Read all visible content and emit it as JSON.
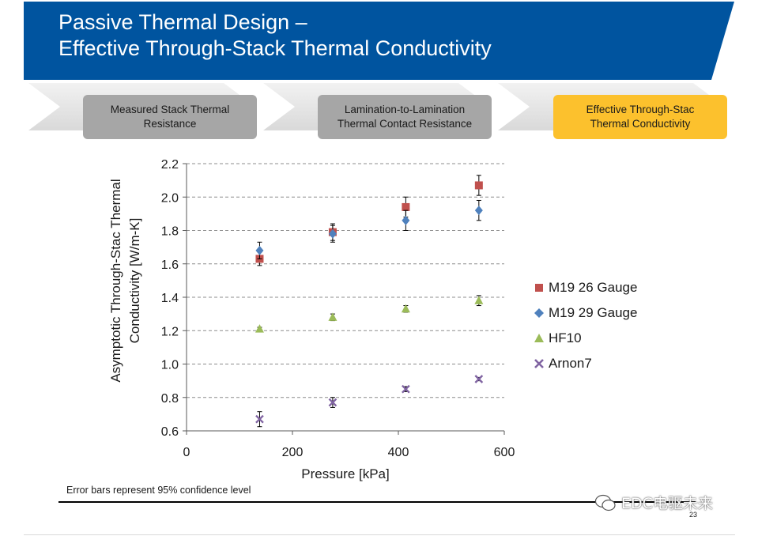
{
  "header": {
    "title_line1": "Passive Thermal Design –",
    "title_line2": "Effective Through-Stack Thermal Conductivity",
    "band_color": "#00549f"
  },
  "process_steps": [
    {
      "label": "Measured Stack Thermal\nResistance",
      "color": "#a6a6a6"
    },
    {
      "label": "Lamination-to-Lamination\nThermal Contact Resistance",
      "color": "#a6a6a6"
    },
    {
      "label": "Effective Through-Stac\nThermal Conductivity",
      "color": "#fcc12d"
    }
  ],
  "chart_data": {
    "type": "scatter",
    "xlabel": "Pressure [kPa]",
    "ylabel_line1": "Asymptotic Through-Stac   Thermal",
    "ylabel_line2": "Conductivity [W/m-K]",
    "xlim": [
      0,
      600
    ],
    "ylim": [
      0.6,
      2.2
    ],
    "x_ticks": [
      0,
      200,
      400,
      600
    ],
    "x_tick_labels": [
      "0",
      "200",
      "400",
      "600"
    ],
    "y_ticks": [
      0.6,
      0.8,
      1.0,
      1.2,
      1.4,
      1.6,
      1.8,
      2.0,
      2.2
    ],
    "y_tick_labels": [
      "0.6",
      "0.8",
      "1.0",
      "1.2",
      "1.4",
      "1.6",
      "1.8",
      "2.0",
      "2.2"
    ],
    "grid": "horizontal dashed",
    "legend_position": "right",
    "error_bars": true,
    "series": [
      {
        "name": "M19 26 Gauge",
        "marker": "square",
        "color": "#c0504d",
        "x": [
          138,
          276,
          414,
          552
        ],
        "y": [
          1.63,
          1.79,
          1.94,
          2.07
        ],
        "err": [
          0.04,
          0.05,
          0.06,
          0.06
        ]
      },
      {
        "name": "M19 29 Gauge",
        "marker": "diamond",
        "color": "#4f81bd",
        "x": [
          138,
          276,
          414,
          552
        ],
        "y": [
          1.68,
          1.78,
          1.86,
          1.92
        ],
        "err": [
          0.05,
          0.05,
          0.06,
          0.06
        ]
      },
      {
        "name": "HF10",
        "marker": "triangle",
        "color": "#9bbb59",
        "x": [
          138,
          276,
          414,
          552
        ],
        "y": [
          1.21,
          1.28,
          1.33,
          1.38
        ],
        "err": [
          0.01,
          0.02,
          0.02,
          0.03
        ]
      },
      {
        "name": "Arnon7",
        "marker": "x",
        "color": "#8064a2",
        "x": [
          138,
          276,
          414,
          552
        ],
        "y": [
          0.67,
          0.77,
          0.85,
          0.91
        ],
        "err": [
          0.045,
          0.03,
          0.015,
          0.01
        ]
      }
    ]
  },
  "footnote": "Error bars represent 95% confidence level",
  "page_number": "23",
  "watermark": "EDC电驱未来"
}
